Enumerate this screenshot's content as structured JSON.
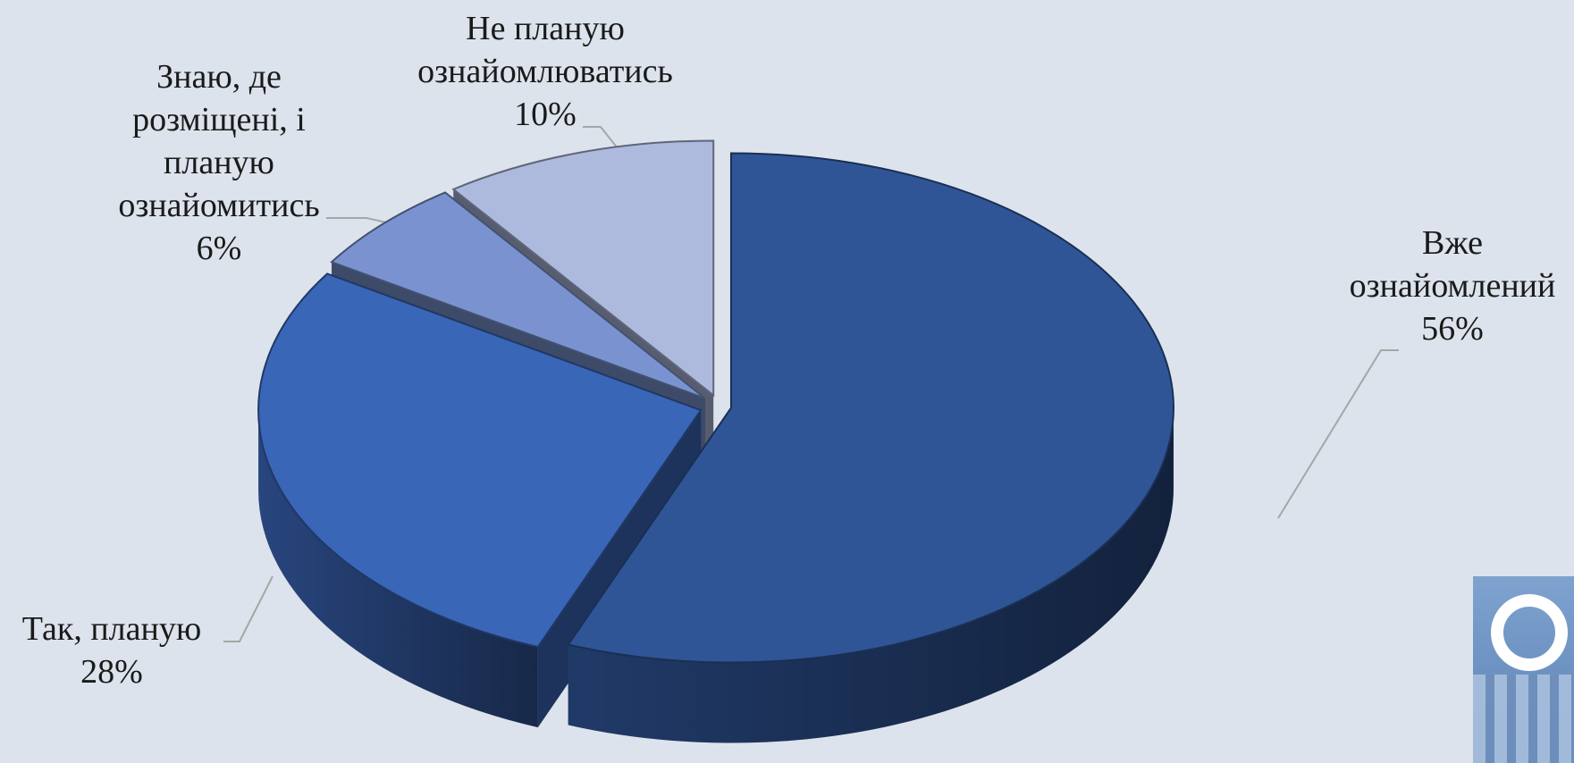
{
  "chart_data": {
    "type": "pie",
    "title": "",
    "categories": [
      "Вже\nознайомлений",
      "Так, планую",
      "Знаю, де\nрозміщені, і\nпланую\nознайомитись",
      "Не планую\nознайомлюватись"
    ],
    "values": [
      56,
      28,
      6,
      10
    ],
    "percent_labels": [
      "56%",
      "28%",
      "6%",
      "10%"
    ],
    "colors": [
      "#2f5597",
      "#3a66b8",
      "#7a93d0",
      "#adbade"
    ],
    "legend": "none",
    "style": "3d-exploded"
  },
  "labels": [
    {
      "name": "Вже\nознайомлений",
      "pct": "56%"
    },
    {
      "name": "Так, планую",
      "pct": "28%"
    },
    {
      "name": "Знаю, де\nрозміщені, і\nпланую\nознайомитись",
      "pct": "6%"
    },
    {
      "name": "Не планую\nознайомлюватись",
      "pct": "10%"
    }
  ],
  "logo": {
    "icon": "university-building-logo-icon"
  }
}
